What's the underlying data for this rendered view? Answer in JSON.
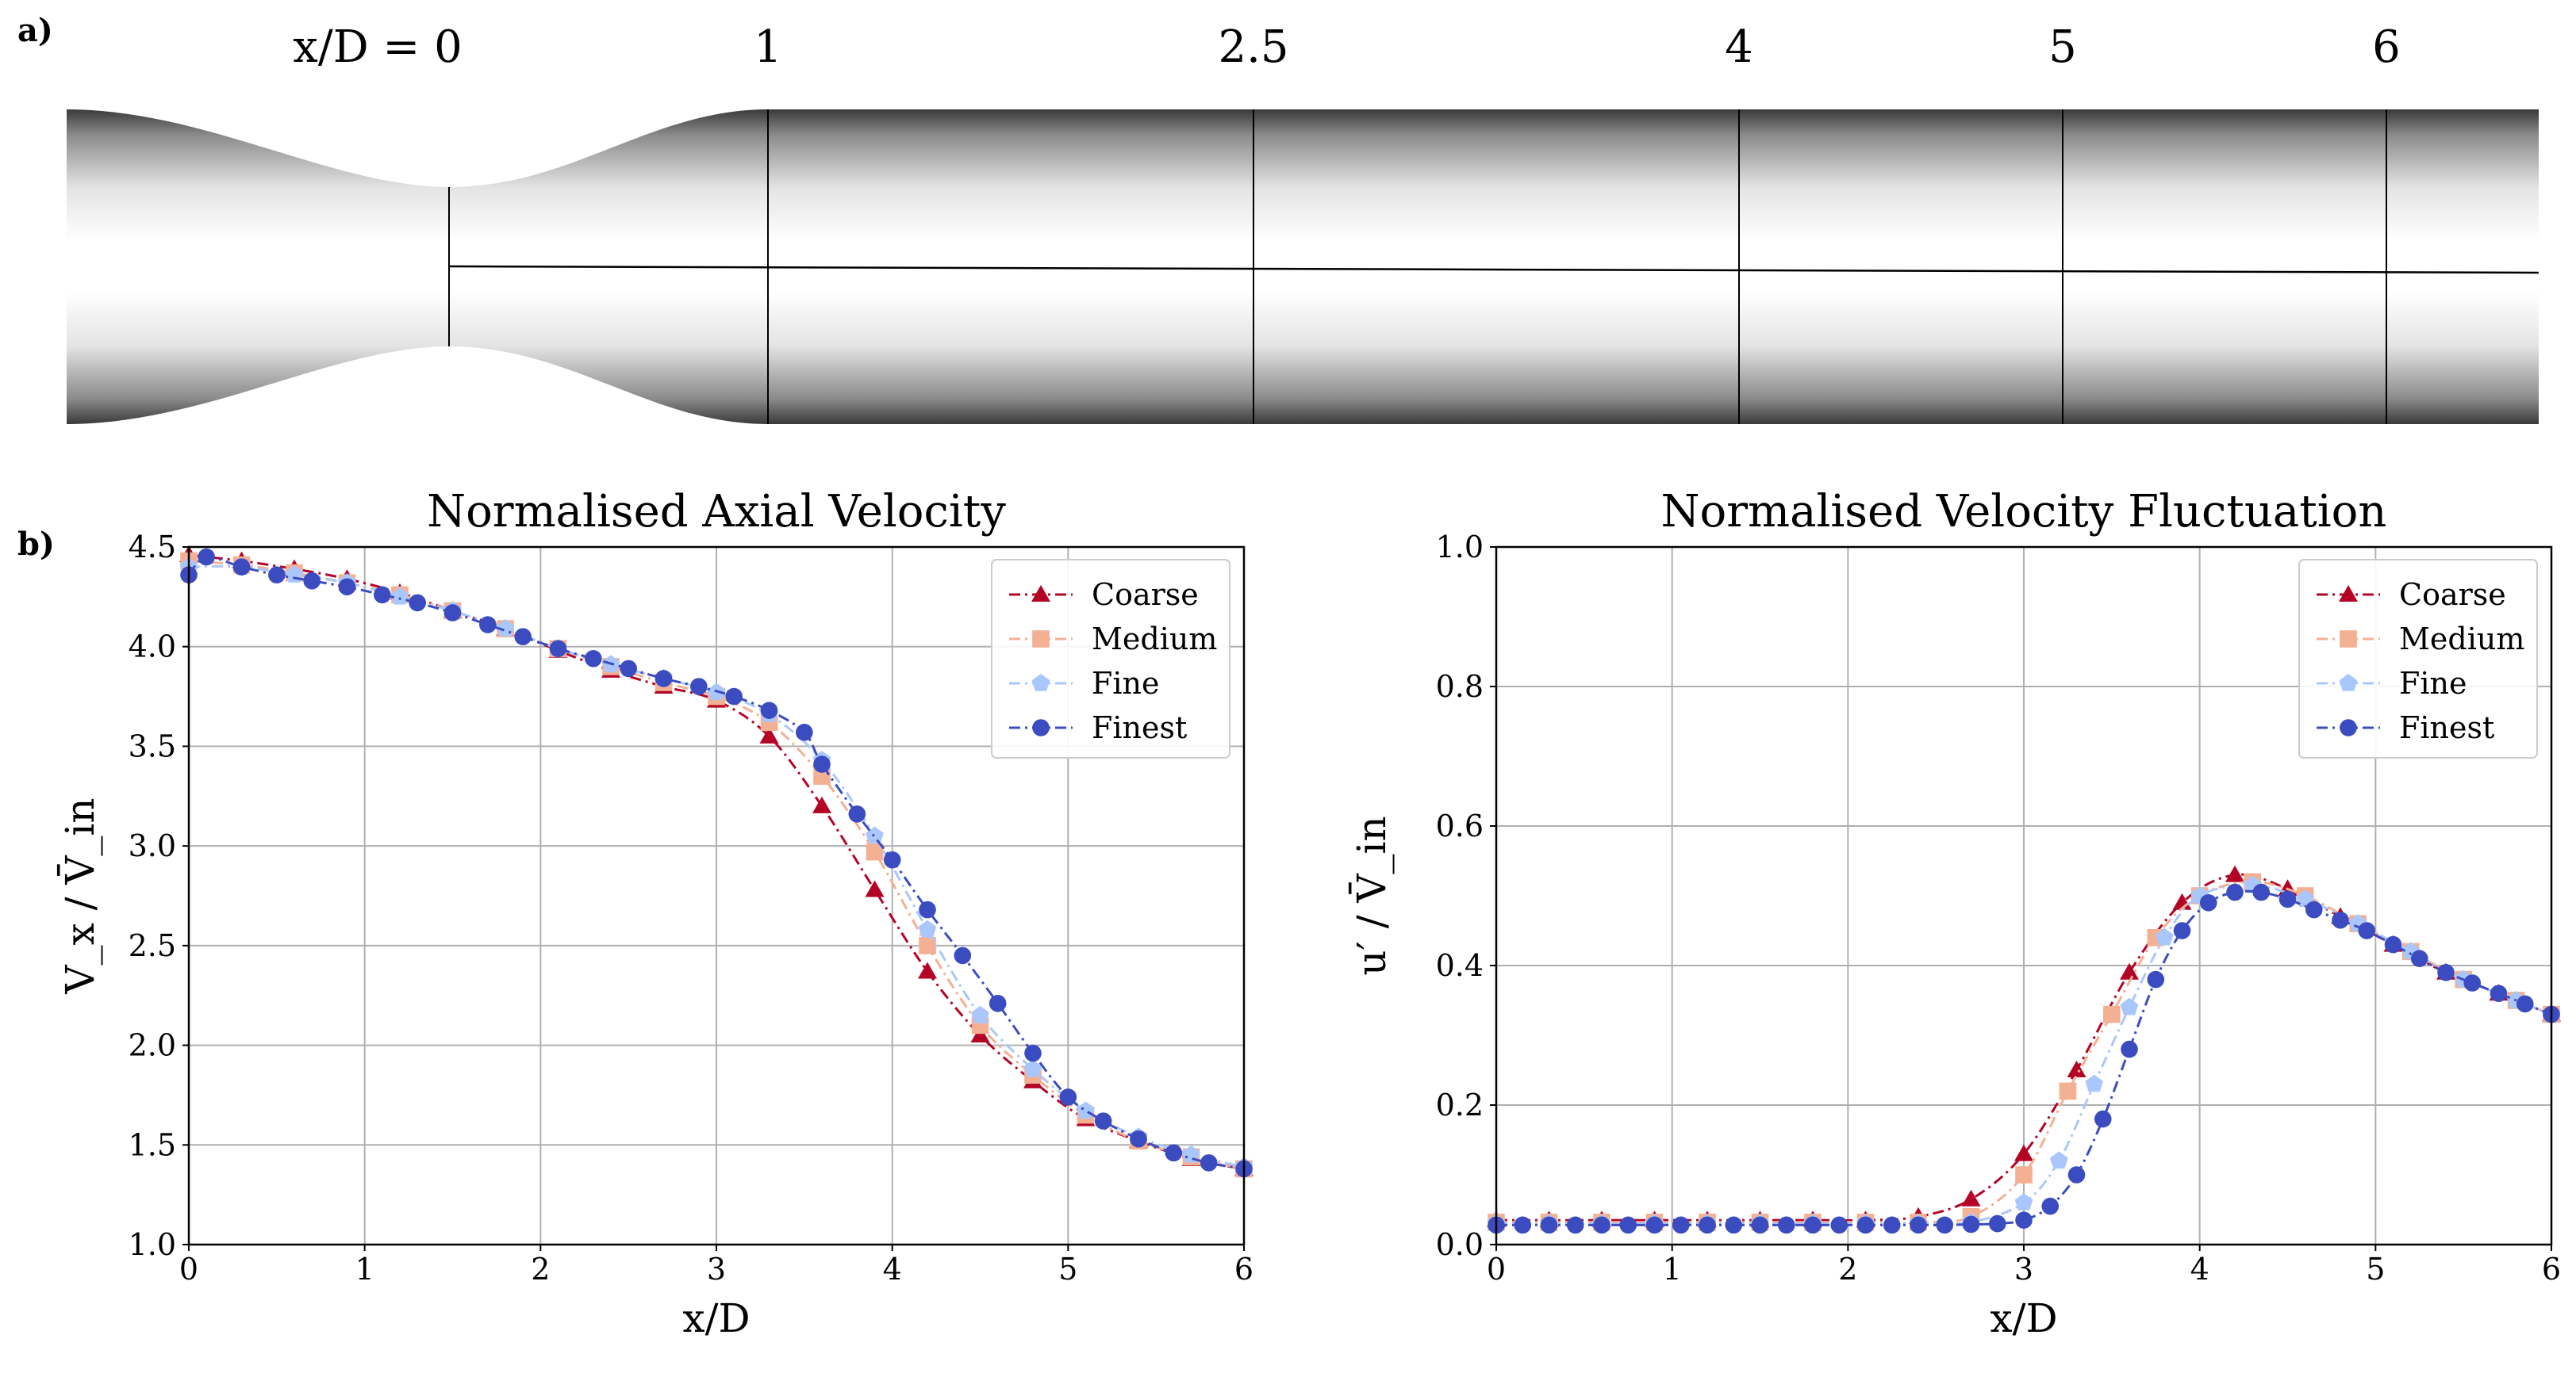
{
  "panel_a": {
    "label": "a)",
    "section_labels": [
      "x/D = 0",
      "1",
      "2.5",
      "4",
      "5",
      "6"
    ],
    "section_positions_xD": [
      0,
      1,
      2.5,
      4,
      5,
      6
    ]
  },
  "panel_b": {
    "label": "b)"
  },
  "chart_data": [
    {
      "type": "line",
      "title": "Normalised Axial Velocity",
      "xlabel": "x/D",
      "ylabel": "V_x / V̄_in",
      "xlim": [
        0,
        6
      ],
      "ylim": [
        1.0,
        4.5
      ],
      "xticks": [
        0,
        1,
        2,
        3,
        4,
        5,
        6
      ],
      "yticks": [
        1.0,
        1.5,
        2.0,
        2.5,
        3.0,
        3.5,
        4.0,
        4.5
      ],
      "xtick_labels": [
        "0",
        "1",
        "2",
        "3",
        "4",
        "5",
        "6"
      ],
      "ytick_labels": [
        "1.0",
        "1.5",
        "2.0",
        "2.5",
        "3.0",
        "3.5",
        "4.0",
        "4.5"
      ],
      "grid": true,
      "legend_position": "top-right",
      "series": [
        {
          "name": "Coarse",
          "color": "#b40426",
          "marker": "triangle",
          "x": [
            0,
            0.3,
            0.6,
            0.9,
            1.2,
            1.5,
            1.8,
            2.1,
            2.4,
            2.7,
            3.0,
            3.3,
            3.6,
            3.9,
            4.2,
            4.5,
            4.8,
            5.1,
            5.4,
            5.7,
            6.0
          ],
          "y": [
            4.46,
            4.43,
            4.39,
            4.34,
            4.27,
            4.18,
            4.09,
            3.98,
            3.88,
            3.8,
            3.73,
            3.55,
            3.2,
            2.78,
            2.37,
            2.05,
            1.82,
            1.63,
            1.52,
            1.43,
            1.38
          ]
        },
        {
          "name": "Medium",
          "color": "#f4b093",
          "marker": "square",
          "x": [
            0,
            0.3,
            0.6,
            0.9,
            1.2,
            1.5,
            1.8,
            2.1,
            2.4,
            2.7,
            3.0,
            3.3,
            3.6,
            3.9,
            4.2,
            4.5,
            4.8,
            5.1,
            5.4,
            5.7,
            6.0
          ],
          "y": [
            4.43,
            4.41,
            4.37,
            4.32,
            4.26,
            4.18,
            4.09,
            3.99,
            3.9,
            3.82,
            3.75,
            3.62,
            3.35,
            2.97,
            2.5,
            2.1,
            1.85,
            1.65,
            1.52,
            1.44,
            1.38
          ]
        },
        {
          "name": "Fine",
          "color": "#aac7fd",
          "marker": "pentagon",
          "x": [
            0,
            0.3,
            0.6,
            0.9,
            1.2,
            1.5,
            1.8,
            2.1,
            2.4,
            2.7,
            3.0,
            3.3,
            3.6,
            3.9,
            4.2,
            4.5,
            4.8,
            5.1,
            5.4,
            5.7,
            6.0
          ],
          "y": [
            4.4,
            4.4,
            4.36,
            4.32,
            4.25,
            4.18,
            4.09,
            3.99,
            3.91,
            3.84,
            3.77,
            3.66,
            3.43,
            3.05,
            2.58,
            2.15,
            1.88,
            1.67,
            1.54,
            1.45,
            1.39
          ]
        },
        {
          "name": "Finest",
          "color": "#3b4cc0",
          "marker": "circle",
          "x": [
            0,
            0.1,
            0.3,
            0.5,
            0.7,
            0.9,
            1.1,
            1.3,
            1.5,
            1.7,
            1.9,
            2.1,
            2.3,
            2.5,
            2.7,
            2.9,
            3.1,
            3.3,
            3.5,
            3.6,
            3.8,
            4.0,
            4.2,
            4.4,
            4.6,
            4.8,
            5.0,
            5.2,
            5.4,
            5.6,
            5.8,
            6.0
          ],
          "y": [
            4.36,
            4.45,
            4.4,
            4.36,
            4.33,
            4.3,
            4.26,
            4.22,
            4.17,
            4.11,
            4.05,
            3.99,
            3.94,
            3.89,
            3.84,
            3.8,
            3.75,
            3.68,
            3.57,
            3.41,
            3.16,
            2.93,
            2.68,
            2.45,
            2.21,
            1.96,
            1.74,
            1.62,
            1.53,
            1.46,
            1.41,
            1.38
          ]
        }
      ]
    },
    {
      "type": "line",
      "title": "Normalised Velocity Fluctuation",
      "xlabel": "x/D",
      "ylabel": "u′ / V̄_in",
      "xlim": [
        0,
        6
      ],
      "ylim": [
        0.0,
        1.0
      ],
      "xticks": [
        0,
        1,
        2,
        3,
        4,
        5,
        6
      ],
      "yticks": [
        0.0,
        0.2,
        0.4,
        0.6,
        0.8,
        1.0
      ],
      "xtick_labels": [
        "0",
        "1",
        "2",
        "3",
        "4",
        "5",
        "6"
      ],
      "ytick_labels": [
        "0.0",
        "0.2",
        "0.4",
        "0.6",
        "0.8",
        "1.0"
      ],
      "grid": true,
      "legend_position": "top-right",
      "series": [
        {
          "name": "Coarse",
          "color": "#b40426",
          "marker": "triangle",
          "x": [
            0,
            0.3,
            0.6,
            0.9,
            1.2,
            1.5,
            1.8,
            2.1,
            2.4,
            2.7,
            3.0,
            3.3,
            3.6,
            3.9,
            4.2,
            4.5,
            4.8,
            5.1,
            5.4,
            5.7,
            6.0
          ],
          "y": [
            0.035,
            0.035,
            0.035,
            0.035,
            0.035,
            0.035,
            0.035,
            0.035,
            0.04,
            0.065,
            0.13,
            0.25,
            0.39,
            0.49,
            0.53,
            0.51,
            0.47,
            0.43,
            0.39,
            0.36,
            0.33
          ]
        },
        {
          "name": "Medium",
          "color": "#f4b093",
          "marker": "square",
          "x": [
            0,
            0.3,
            0.6,
            0.9,
            1.2,
            1.5,
            1.8,
            2.1,
            2.4,
            2.7,
            3.0,
            3.25,
            3.5,
            3.75,
            4.0,
            4.3,
            4.6,
            4.9,
            5.2,
            5.5,
            5.8,
            6.0
          ],
          "y": [
            0.032,
            0.032,
            0.032,
            0.032,
            0.032,
            0.032,
            0.032,
            0.032,
            0.032,
            0.04,
            0.1,
            0.22,
            0.33,
            0.44,
            0.5,
            0.52,
            0.5,
            0.46,
            0.42,
            0.38,
            0.35,
            0.33
          ]
        },
        {
          "name": "Fine",
          "color": "#aac7fd",
          "marker": "pentagon",
          "x": [
            0,
            0.3,
            0.6,
            0.9,
            1.2,
            1.5,
            1.8,
            2.1,
            2.4,
            2.7,
            3.0,
            3.2,
            3.4,
            3.6,
            3.8,
            4.0,
            4.3,
            4.6,
            4.9,
            5.2,
            5.5,
            5.8,
            6.0
          ],
          "y": [
            0.03,
            0.03,
            0.03,
            0.03,
            0.03,
            0.03,
            0.03,
            0.03,
            0.03,
            0.032,
            0.06,
            0.12,
            0.23,
            0.34,
            0.44,
            0.5,
            0.515,
            0.495,
            0.46,
            0.42,
            0.38,
            0.35,
            0.33
          ]
        },
        {
          "name": "Finest",
          "color": "#3b4cc0",
          "marker": "circle",
          "x": [
            0,
            0.15,
            0.3,
            0.45,
            0.6,
            0.75,
            0.9,
            1.05,
            1.2,
            1.35,
            1.5,
            1.65,
            1.8,
            1.95,
            2.1,
            2.25,
            2.4,
            2.55,
            2.7,
            2.85,
            3.0,
            3.15,
            3.3,
            3.45,
            3.6,
            3.75,
            3.9,
            4.05,
            4.2,
            4.35,
            4.5,
            4.65,
            4.8,
            4.95,
            5.1,
            5.25,
            5.4,
            5.55,
            5.7,
            5.85,
            6.0
          ],
          "y": [
            0.028,
            0.028,
            0.028,
            0.028,
            0.028,
            0.028,
            0.028,
            0.028,
            0.028,
            0.028,
            0.028,
            0.028,
            0.028,
            0.028,
            0.028,
            0.028,
            0.028,
            0.028,
            0.029,
            0.03,
            0.035,
            0.055,
            0.1,
            0.18,
            0.28,
            0.38,
            0.45,
            0.49,
            0.505,
            0.505,
            0.495,
            0.48,
            0.465,
            0.45,
            0.43,
            0.41,
            0.39,
            0.375,
            0.36,
            0.345,
            0.33
          ]
        }
      ]
    }
  ]
}
